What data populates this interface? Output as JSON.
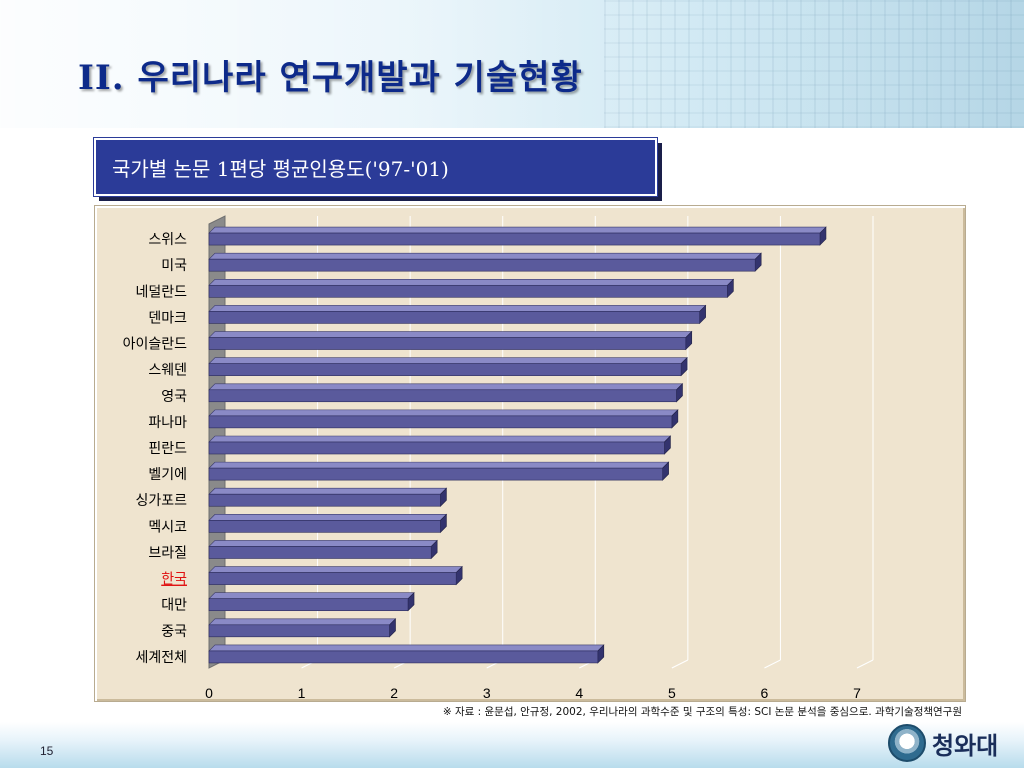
{
  "slide": {
    "title": "II. 우리나라 연구개발과 기술현황",
    "page_number": "15",
    "source": "※ 자료 : 윤문섭, 안규정, 2002, 우리나라의 과학수준 및 구조의 특성: SCI 논문 분석을 중심으로. 과학기술정책연구원",
    "logo_text": "청와대"
  },
  "colors": {
    "title": "#0d2a8a",
    "title_box": "#2b3b98",
    "bar_face": "#5a5a9c",
    "bar_top": "#8a8ac6",
    "bar_side": "#33336e",
    "chart_bg": "#efe4cf",
    "highlight_label": "#e01010"
  },
  "chart_data": {
    "type": "bar",
    "orientation": "horizontal",
    "title": "국가별 논문 1편당 평균인용도('97-'01)",
    "categories": [
      "스위스",
      "미국",
      "네덜란드",
      "덴마크",
      "아이슬란드",
      "스웨덴",
      "영국",
      "파나마",
      "핀란드",
      "벨기에",
      "싱가포르",
      "멕시코",
      "브라질",
      "한국",
      "대만",
      "중국",
      "세계전체"
    ],
    "values": [
      6.6,
      5.9,
      5.6,
      5.3,
      5.15,
      5.1,
      5.05,
      5.0,
      4.92,
      4.9,
      2.5,
      2.5,
      2.4,
      2.67,
      2.15,
      1.95,
      4.2
    ],
    "highlight": "한국",
    "xlim": [
      0,
      7
    ],
    "xticks": [
      "0",
      "1",
      "2",
      "3",
      "4",
      "5",
      "6",
      "7"
    ],
    "grid": true,
    "legend": "none",
    "xlabel": "",
    "ylabel": ""
  }
}
